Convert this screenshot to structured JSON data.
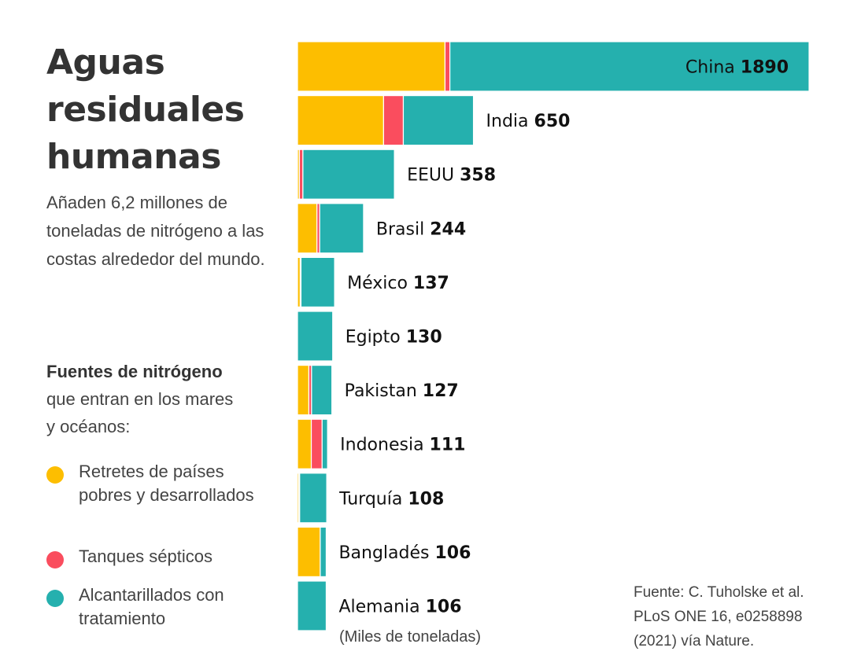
{
  "title_lines": [
    "Aguas",
    "residuales",
    "humanas"
  ],
  "subtitle": "Añaden 6,2 millones de toneladas de nitrógeno a las costas alrededor del mundo.",
  "sources_heading": "Fuentes de nitrógeno",
  "sources_description": "que entran en los mares y océanos:",
  "legend": [
    {
      "label": "Retretes de países pobres y desarrollados",
      "color": "#FDBE00"
    },
    {
      "label": "Tanques sépticos",
      "color": "#FA4D5E"
    },
    {
      "label": "Alcantarillados con tratamiento",
      "color": "#25B0AE"
    }
  ],
  "unit_note": "(Miles de toneladas)",
  "source_lines": [
    "Fuente: C. Tuholske et al.",
    "PLoS ONE 16, e0258898",
    "(2021) vía Nature."
  ],
  "chart_data": {
    "type": "bar",
    "orientation": "horizontal",
    "stacked": true,
    "unit": "Miles de toneladas",
    "categories": [
      "China",
      "India",
      "EEUU",
      "Brasil",
      "México",
      "Egipto",
      "Pakistan",
      "Indonesia",
      "Turquía",
      "Bangladés",
      "Alemania"
    ],
    "totals": [
      1890,
      650,
      358,
      244,
      137,
      130,
      127,
      111,
      108,
      106,
      106
    ],
    "series": [
      {
        "name": "Retretes de países pobres y desarrollados",
        "color": "#FDBE00",
        "values": [
          545,
          318,
          7,
          72,
          10,
          0,
          42,
          51,
          5,
          84,
          0
        ]
      },
      {
        "name": "Tanques sépticos",
        "color": "#FA4D5E",
        "values": [
          18,
          73,
          13,
          10,
          3,
          0,
          10,
          40,
          3,
          0,
          0
        ]
      },
      {
        "name": "Alcantarillados con tratamiento",
        "color": "#25B0AE",
        "values": [
          1327,
          259,
          338,
          162,
          124,
          130,
          75,
          20,
          100,
          22,
          106
        ]
      }
    ],
    "legend": "left"
  }
}
